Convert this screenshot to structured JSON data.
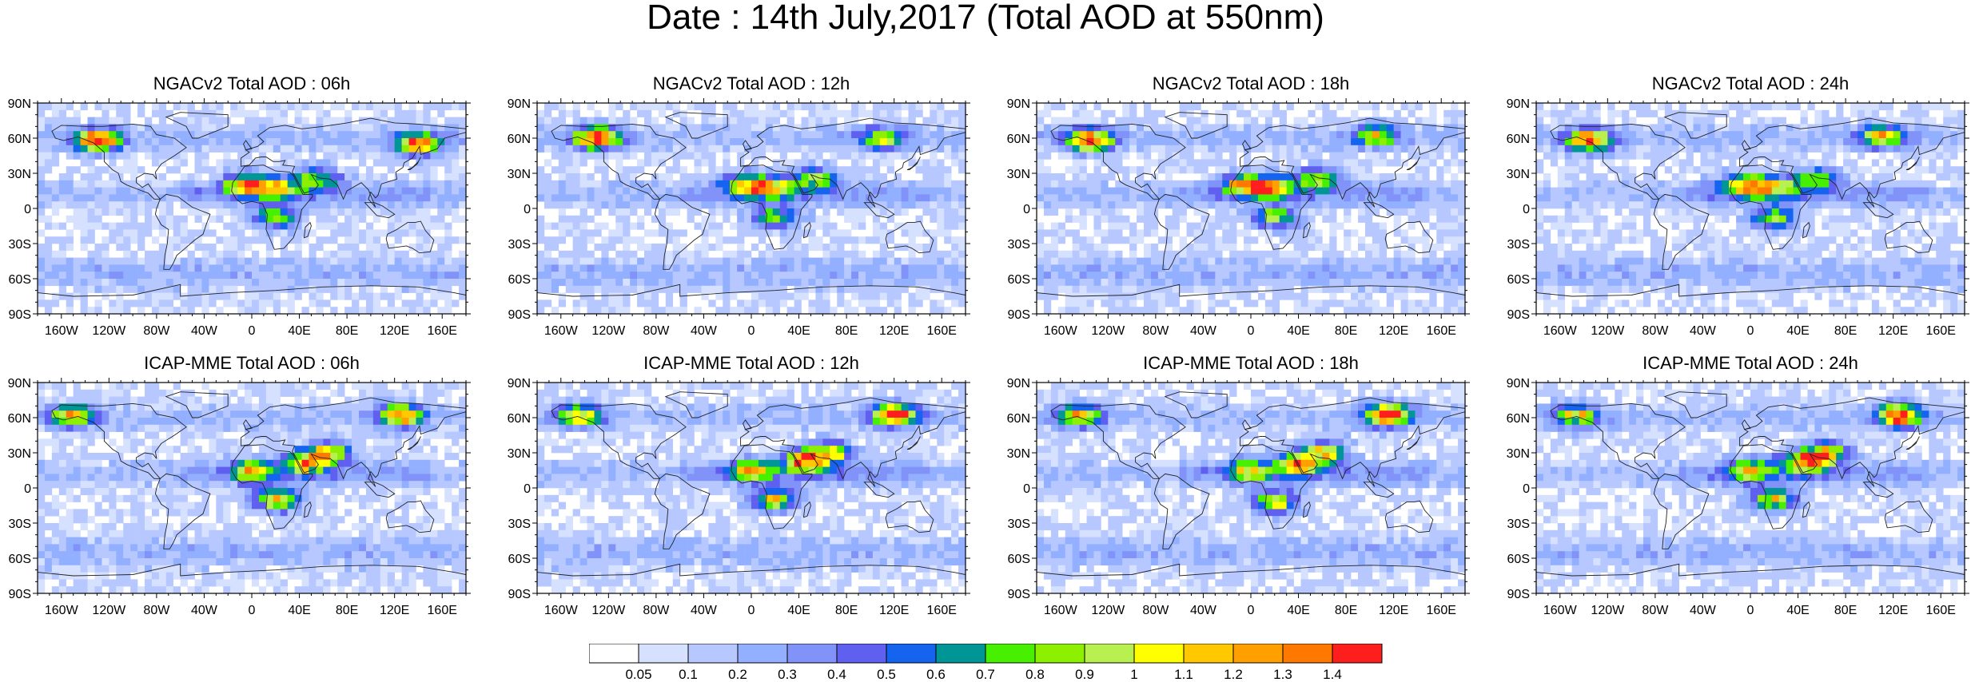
{
  "title": "Date : 14th July,2017 (Total AOD at 550nm)",
  "chart_data": [
    {
      "type": "heatmap",
      "title": "NGACv2 Total AOD : 06h",
      "x_ticks": [
        "160W",
        "120W",
        "80W",
        "40W",
        "0",
        "40E",
        "80E",
        "120E",
        "160E"
      ],
      "y_ticks": [
        "90N",
        "60N",
        "30N",
        "0",
        "30S",
        "60S",
        "90S"
      ],
      "xlim": [
        -180,
        180
      ],
      "ylim": [
        -90,
        90
      ],
      "hotspots": [
        {
          "lon": -130,
          "lat": 58,
          "aod": 1.4
        },
        {
          "lon": -5,
          "lat": 20,
          "aod": 1.1
        },
        {
          "lon": 20,
          "lat": 18,
          "aod": 0.9
        },
        {
          "lon": 55,
          "lat": 25,
          "aod": 0.8
        },
        {
          "lon": 140,
          "lat": 55,
          "aod": 1.2
        },
        {
          "lon": 20,
          "lat": -8,
          "aod": 0.8
        }
      ]
    },
    {
      "type": "heatmap",
      "title": "NGACv2 Total AOD : 12h",
      "x_ticks": [
        "160W",
        "120W",
        "80W",
        "40W",
        "0",
        "40E",
        "80E",
        "120E",
        "160E"
      ],
      "y_ticks": [
        "90N",
        "60N",
        "30N",
        "0",
        "30S",
        "60S",
        "90S"
      ],
      "xlim": [
        -180,
        180
      ],
      "ylim": [
        -90,
        90
      ],
      "hotspots": [
        {
          "lon": -130,
          "lat": 60,
          "aod": 1.4
        },
        {
          "lon": -5,
          "lat": 20,
          "aod": 1.0
        },
        {
          "lon": 20,
          "lat": 18,
          "aod": 0.9
        },
        {
          "lon": 55,
          "lat": 25,
          "aod": 0.8
        },
        {
          "lon": 110,
          "lat": 60,
          "aod": 0.8
        },
        {
          "lon": 20,
          "lat": -8,
          "aod": 0.8
        }
      ]
    },
    {
      "type": "heatmap",
      "title": "NGACv2 Total AOD : 18h",
      "x_ticks": [
        "160W",
        "120W",
        "80W",
        "40W",
        "0",
        "40E",
        "80E",
        "120E",
        "160E"
      ],
      "y_ticks": [
        "90N",
        "60N",
        "30N",
        "0",
        "30S",
        "60S",
        "90S"
      ],
      "xlim": [
        -180,
        180
      ],
      "ylim": [
        -90,
        90
      ],
      "hotspots": [
        {
          "lon": -135,
          "lat": 58,
          "aod": 1.4
        },
        {
          "lon": -5,
          "lat": 20,
          "aod": 1.1
        },
        {
          "lon": 20,
          "lat": 18,
          "aod": 0.9
        },
        {
          "lon": 55,
          "lat": 25,
          "aod": 0.8
        },
        {
          "lon": 105,
          "lat": 62,
          "aod": 0.8
        },
        {
          "lon": 20,
          "lat": -8,
          "aod": 0.8
        }
      ]
    },
    {
      "type": "heatmap",
      "title": "NGACv2 Total AOD : 24h",
      "x_ticks": [
        "160W",
        "120W",
        "80W",
        "40W",
        "0",
        "40E",
        "80E",
        "120E",
        "160E"
      ],
      "y_ticks": [
        "90N",
        "60N",
        "30N",
        "0",
        "30S",
        "60S",
        "90S"
      ],
      "xlim": [
        -180,
        180
      ],
      "ylim": [
        -90,
        90
      ],
      "hotspots": [
        {
          "lon": -135,
          "lat": 58,
          "aod": 1.3
        },
        {
          "lon": -5,
          "lat": 20,
          "aod": 1.1
        },
        {
          "lon": 20,
          "lat": 18,
          "aod": 0.9
        },
        {
          "lon": 55,
          "lat": 25,
          "aod": 0.8
        },
        {
          "lon": 110,
          "lat": 62,
          "aod": 0.9
        },
        {
          "lon": 20,
          "lat": -8,
          "aod": 0.8
        }
      ]
    },
    {
      "type": "heatmap",
      "title": "ICAP-MME Total AOD : 06h",
      "x_ticks": [
        "160W",
        "120W",
        "80W",
        "40W",
        "0",
        "40E",
        "80E",
        "120E",
        "160E"
      ],
      "y_ticks": [
        "90N",
        "60N",
        "30N",
        "0",
        "30S",
        "60S",
        "90S"
      ],
      "xlim": [
        -180,
        180
      ],
      "ylim": [
        -90,
        90
      ],
      "hotspots": [
        {
          "lon": -150,
          "lat": 62,
          "aod": 1.0
        },
        {
          "lon": 0,
          "lat": 15,
          "aod": 0.9
        },
        {
          "lon": 45,
          "lat": 22,
          "aod": 1.1
        },
        {
          "lon": 65,
          "lat": 30,
          "aod": 0.9
        },
        {
          "lon": 125,
          "lat": 62,
          "aod": 1.2
        },
        {
          "lon": 20,
          "lat": -10,
          "aod": 1.1
        }
      ]
    },
    {
      "type": "heatmap",
      "title": "ICAP-MME Total AOD : 12h",
      "x_ticks": [
        "160W",
        "120W",
        "80W",
        "40W",
        "0",
        "40E",
        "80E",
        "120E",
        "160E"
      ],
      "y_ticks": [
        "90N",
        "60N",
        "30N",
        "0",
        "30S",
        "60S",
        "90S"
      ],
      "xlim": [
        -180,
        180
      ],
      "ylim": [
        -90,
        90
      ],
      "hotspots": [
        {
          "lon": -145,
          "lat": 62,
          "aod": 1.0
        },
        {
          "lon": 0,
          "lat": 15,
          "aod": 0.9
        },
        {
          "lon": 45,
          "lat": 22,
          "aod": 1.2
        },
        {
          "lon": 65,
          "lat": 30,
          "aod": 1.0
        },
        {
          "lon": 120,
          "lat": 62,
          "aod": 1.4
        },
        {
          "lon": 20,
          "lat": -10,
          "aod": 1.0
        }
      ]
    },
    {
      "type": "heatmap",
      "title": "ICAP-MME Total AOD : 18h",
      "x_ticks": [
        "160W",
        "120W",
        "80W",
        "40W",
        "0",
        "40E",
        "80E",
        "120E",
        "160E"
      ],
      "y_ticks": [
        "90N",
        "60N",
        "30N",
        "0",
        "30S",
        "60S",
        "90S"
      ],
      "xlim": [
        -180,
        180
      ],
      "ylim": [
        -90,
        90
      ],
      "hotspots": [
        {
          "lon": -145,
          "lat": 62,
          "aod": 1.0
        },
        {
          "lon": 0,
          "lat": 15,
          "aod": 0.9
        },
        {
          "lon": 40,
          "lat": 20,
          "aod": 1.1
        },
        {
          "lon": 60,
          "lat": 30,
          "aod": 1.0
        },
        {
          "lon": 115,
          "lat": 62,
          "aod": 1.4
        },
        {
          "lon": 20,
          "lat": -12,
          "aod": 1.0
        }
      ]
    },
    {
      "type": "heatmap",
      "title": "ICAP-MME Total AOD : 24h",
      "x_ticks": [
        "160W",
        "120W",
        "80W",
        "40W",
        "0",
        "40E",
        "80E",
        "120E",
        "160E"
      ],
      "y_ticks": [
        "90N",
        "60N",
        "30N",
        "0",
        "30S",
        "60S",
        "90S"
      ],
      "xlim": [
        -180,
        180
      ],
      "ylim": [
        -90,
        90
      ],
      "hotspots": [
        {
          "lon": -145,
          "lat": 62,
          "aod": 0.9
        },
        {
          "lon": 0,
          "lat": 15,
          "aod": 0.9
        },
        {
          "lon": 45,
          "lat": 22,
          "aod": 1.2
        },
        {
          "lon": 65,
          "lat": 30,
          "aod": 1.0
        },
        {
          "lon": 125,
          "lat": 62,
          "aod": 1.4
        },
        {
          "lon": 20,
          "lat": -10,
          "aod": 1.0
        }
      ]
    }
  ],
  "colorbar": {
    "labels": [
      "0.05",
      "0.1",
      "0.2",
      "0.3",
      "0.4",
      "0.5",
      "0.6",
      "0.7",
      "0.8",
      "0.9",
      "1",
      "1.1",
      "1.2",
      "1.3",
      "1.4"
    ],
    "colors": [
      "#ffffff",
      "#d6e0ff",
      "#b6c8ff",
      "#92b0ff",
      "#8192f8",
      "#6060f0",
      "#1464f0",
      "#009696",
      "#46f000",
      "#8cf000",
      "#b8f050",
      "#ffff00",
      "#ffc800",
      "#ffa000",
      "#ff7800",
      "#ff1e1e"
    ]
  },
  "colors": {
    "land_outline": "#222222",
    "background_low": "#e8eeff"
  }
}
